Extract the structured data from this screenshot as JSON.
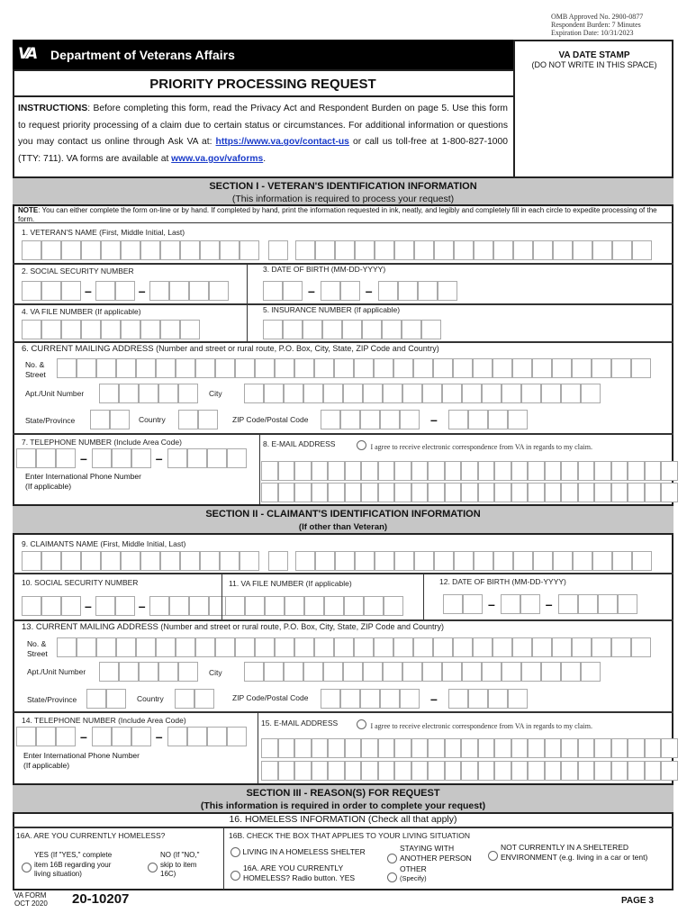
{
  "omb": {
    "approved": "OMB Approved No. 2900-0877",
    "burden": "Respondent Burden: 7 Minutes",
    "expiration": "Expiration Date:  10/31/2023"
  },
  "header": {
    "agency": "Department of Veterans Affairs",
    "logo_text": "VA",
    "title": "PRIORITY PROCESSING REQUEST"
  },
  "stamp": {
    "title": "VA DATE STAMP",
    "subtitle": "(DO NOT WRITE IN THIS SPACE)"
  },
  "instructions": {
    "lead": "INSTRUCTIONS",
    "text1": ": Before completing this form, read the Privacy Act and Respondent Burden on page 5. Use this form to request priority processing of a claim due to certain status or circumstances. For additional information or questions you may contact us online through Ask VA at: ",
    "link1": "https://www.va.gov/contact-us",
    "text2": " or call us toll-free at 1-800-827-1000 (TTY: 711). VA forms are available at ",
    "link2": "www.va.gov/vaforms",
    "text3": "."
  },
  "section1": {
    "title": "SECTION I - VETERAN'S IDENTIFICATION INFORMATION",
    "subtitle": "(This information is required to process your request)",
    "note_lead": "NOTE",
    "note": ": You can either complete the form on-line or by hand. If completed by hand, print the information requested in ink, neatly, and legibly and completely fill in each circle to expedite processing of the form.",
    "name": "1. VETERAN'S NAME (First, Middle Initial, Last)",
    "ssn": "2. SOCIAL SECURITY NUMBER",
    "dob": "3. DATE OF BIRTH (MM-DD-YYYY)",
    "file": "4. VA FILE NUMBER (If applicable)",
    "insurance": "5. INSURANCE NUMBER (If applicable)",
    "address": "6. CURRENT MAILING ADDRESS",
    "address_hint": " (Number and street or rural route, P.O. Box, City, State, ZIP Code and Country)",
    "phone": "7. TELEPHONE NUMBER (Include Area Code)",
    "email": "8. E-MAIL ADDRESS"
  },
  "section2": {
    "title": "SECTION II - CLAIMANT'S IDENTIFICATION INFORMATION",
    "subtitle": "(If other than Veteran)",
    "name": "9. CLAIMANTS NAME (First, Middle Initial, Last)",
    "ssn": "10. SOCIAL SECURITY NUMBER",
    "file": "11. VA FILE NUMBER (If applicable)",
    "dob": "12. DATE OF BIRTH (MM-DD-YYYY)",
    "address": "13. CURRENT MAILING ADDRESS",
    "address_hint": " (Number and street or rural route, P.O. Box, City, State, ZIP Code and Country)",
    "phone": "14. TELEPHONE NUMBER (Include Area Code)",
    "email": "15. E-MAIL ADDRESS"
  },
  "address_labels": {
    "street1": "No. &",
    "street2": "Street",
    "apt": "Apt./Unit Number",
    "city": "City",
    "state": "State/Province",
    "country": "Country",
    "zip": "ZIP Code/Postal Code"
  },
  "phone_labels": {
    "intl1": "Enter International Phone Number",
    "intl2": "(If applicable)"
  },
  "email_agree": "I agree to receive electronic correspondence from VA in regards to my claim.",
  "dash": "–",
  "section3": {
    "title": "SECTION III - REASON(S) FOR REQUEST",
    "subtitle": "(This information is required in order to complete your request)",
    "homeless_heading": "16. HOMELESS INFORMATION (Check all that apply)",
    "q16a": "16A. ARE YOU CURRENTLY HOMELESS?",
    "yes": [
      "YES (If \"YES,\" complete",
      "item 16B regarding your",
      "living situation)"
    ],
    "no": [
      "NO (If \"NO,\"",
      "skip to item",
      "16C)"
    ],
    "q16b": "16B. CHECK THE BOX THAT APPLIES TO YOUR LIVING SITUATION",
    "shelter": "LIVING IN A HOMELESS SHELTER",
    "staying": [
      "STAYING WITH",
      "ANOTHER PERSON"
    ],
    "not_sheltered": [
      "NOT CURRENTLY IN A SHELTERED",
      "ENVIRONMENT (e.g. living in a car or tent)"
    ],
    "radio_yes": [
      "16A. ARE YOU CURRENTLY",
      "HOMELESS? Radio button. YES"
    ],
    "other": [
      "OTHER",
      "(Specify)"
    ]
  },
  "footer": {
    "form_label": "VA FORM",
    "date": "OCT 2020",
    "form_number": "20-10207",
    "page": "PAGE 3"
  }
}
